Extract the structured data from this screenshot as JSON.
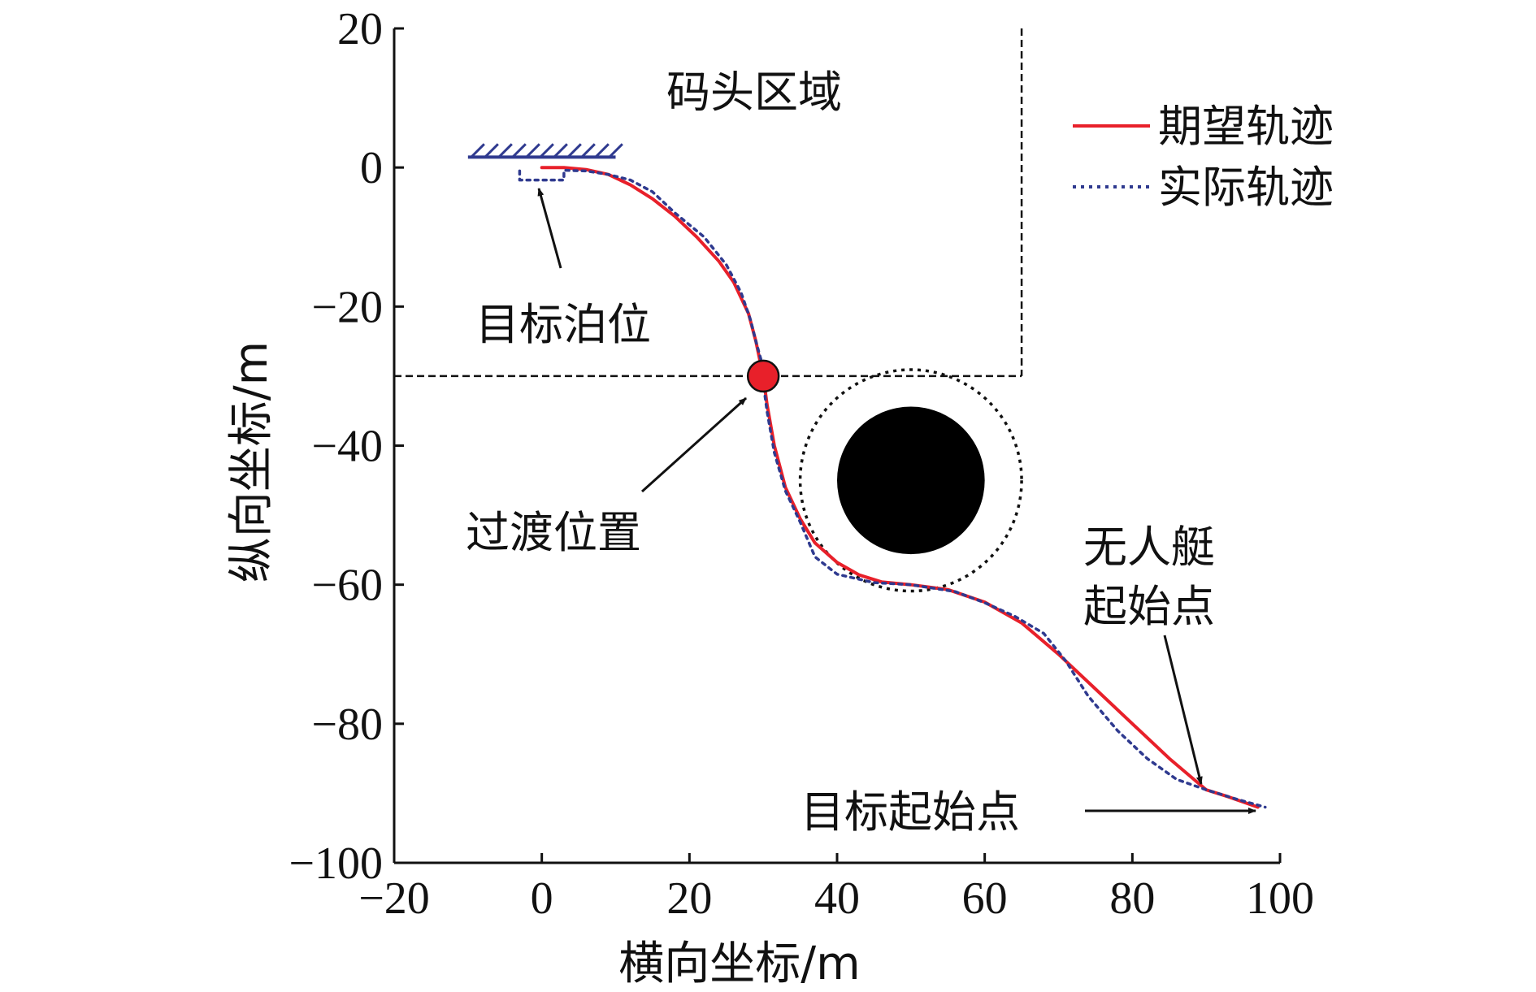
{
  "chart_data": {
    "type": "line",
    "title": "",
    "xlabel": "横向坐标/m",
    "ylabel": "纵向坐标/m",
    "xlim": [
      -20,
      100
    ],
    "ylim": [
      -100,
      20
    ],
    "xticks": [
      -20,
      0,
      20,
      40,
      60,
      80,
      100
    ],
    "yticks": [
      20,
      0,
      -20,
      -40,
      -60,
      -80,
      -100
    ],
    "xtick_labels": [
      "−20",
      "0",
      "20",
      "40",
      "60",
      "80",
      "100"
    ],
    "ytick_labels": [
      "20",
      "0",
      "−20",
      "−40",
      "−60",
      "−80",
      "−100"
    ],
    "grid": false,
    "legend_position": "top-right",
    "colors": {
      "desired": "#e8202a",
      "actual": "#2f3a8f",
      "boundary": "#111111",
      "obstacle": "#000000",
      "transition": "#e8202a"
    },
    "series": [
      {
        "name": "期望轨迹",
        "style": "solid",
        "points": [
          [
            0,
            0
          ],
          [
            3,
            0
          ],
          [
            6,
            -0.3
          ],
          [
            9,
            -1
          ],
          [
            12,
            -2.5
          ],
          [
            15,
            -4.5
          ],
          [
            18,
            -7
          ],
          [
            21,
            -10
          ],
          [
            24,
            -13.5
          ],
          [
            26,
            -16.5
          ],
          [
            28,
            -21
          ],
          [
            29,
            -25
          ],
          [
            29.7,
            -28.5
          ],
          [
            30,
            -30
          ],
          [
            30.5,
            -34
          ],
          [
            31.5,
            -40
          ],
          [
            33,
            -46
          ],
          [
            35,
            -50.5
          ],
          [
            37,
            -54
          ],
          [
            40,
            -56.8
          ],
          [
            43,
            -58.6
          ],
          [
            46,
            -59.6
          ],
          [
            50,
            -60
          ],
          [
            55,
            -60.7
          ],
          [
            60,
            -62.5
          ],
          [
            65,
            -65.5
          ],
          [
            70,
            -70
          ],
          [
            75,
            -75
          ],
          [
            80,
            -80
          ],
          [
            85,
            -85
          ],
          [
            90,
            -89.5
          ],
          [
            93,
            -90.5
          ],
          [
            97,
            -92
          ]
        ]
      },
      {
        "name": "实际轨迹",
        "style": "dotted",
        "points": [
          [
            -3,
            -0.5
          ],
          [
            -3,
            -1.8
          ],
          [
            3,
            -1.8
          ],
          [
            3,
            -0.4
          ],
          [
            6,
            -0.5
          ],
          [
            9,
            -1
          ],
          [
            12,
            -1.8
          ],
          [
            15,
            -3.5
          ],
          [
            18,
            -6.5
          ],
          [
            22,
            -10
          ],
          [
            25,
            -14
          ],
          [
            27,
            -18
          ],
          [
            28.3,
            -22
          ],
          [
            29,
            -25
          ],
          [
            29.8,
            -28
          ],
          [
            30,
            -31
          ],
          [
            30.5,
            -35
          ],
          [
            31.5,
            -41
          ],
          [
            33,
            -46.5
          ],
          [
            35,
            -51
          ],
          [
            37,
            -56
          ],
          [
            40,
            -58.5
          ],
          [
            45,
            -59.7
          ],
          [
            50,
            -60
          ],
          [
            56,
            -61
          ],
          [
            60,
            -62.6
          ],
          [
            64,
            -64.5
          ],
          [
            68,
            -67
          ],
          [
            71,
            -71
          ],
          [
            74,
            -76
          ],
          [
            78,
            -81
          ],
          [
            82,
            -85
          ],
          [
            86,
            -88
          ],
          [
            90,
            -89.5
          ],
          [
            94,
            -90.8
          ],
          [
            98,
            -92
          ]
        ]
      }
    ],
    "dock_boundary": {
      "x": 65,
      "y": -30
    },
    "berth_hatch": {
      "x_from": -10,
      "x_to": 10,
      "y": 1.5
    },
    "obstacle": {
      "center": [
        50,
        -45
      ],
      "radius": 10,
      "safety_radius": 15
    },
    "transition_point": [
      30,
      -30
    ],
    "annotations": {
      "dock_area": "码头区域",
      "target_berth": "目标泊位",
      "transition": "过渡位置",
      "usv_start_line1": "无人艇",
      "usv_start_line2": "起始点",
      "target_start": "目标起始点"
    }
  }
}
